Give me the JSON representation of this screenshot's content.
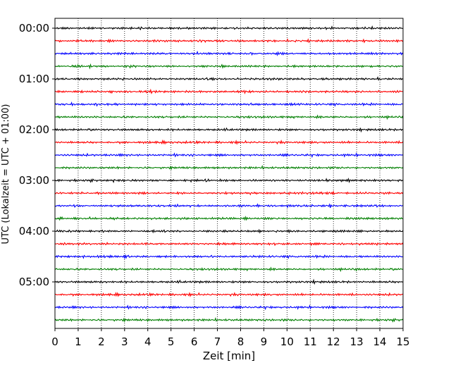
{
  "chart_data": {
    "type": "line",
    "title": "",
    "xlabel": "Zeit  [min]",
    "ylabel": "UTC (Lokalzeit = UTC + 01:00)",
    "xlim": [
      0,
      15
    ],
    "x_ticks": [
      "0",
      "1",
      "2",
      "3",
      "4",
      "5",
      "6",
      "7",
      "8",
      "9",
      "10",
      "11",
      "12",
      "13",
      "14",
      "15"
    ],
    "y_tick_labels": [
      "00:00",
      "01:00",
      "02:00",
      "03:00",
      "04:00",
      "05:00"
    ],
    "grid": "vertical dotted",
    "rows_per_hour": 4,
    "row_minutes": 15,
    "color_cycle": [
      "#000000",
      "#ff0000",
      "#0000ff",
      "#007f00"
    ],
    "traces": [
      {
        "label": "00:00",
        "color": "#000000"
      },
      {
        "label": "00:15",
        "color": "#ff0000"
      },
      {
        "label": "00:30",
        "color": "#0000ff"
      },
      {
        "label": "00:45",
        "color": "#007f00"
      },
      {
        "label": "01:00",
        "color": "#000000"
      },
      {
        "label": "01:15",
        "color": "#ff0000"
      },
      {
        "label": "01:30",
        "color": "#0000ff"
      },
      {
        "label": "01:45",
        "color": "#007f00"
      },
      {
        "label": "02:00",
        "color": "#000000"
      },
      {
        "label": "02:15",
        "color": "#ff0000"
      },
      {
        "label": "02:30",
        "color": "#0000ff"
      },
      {
        "label": "02:45",
        "color": "#007f00"
      },
      {
        "label": "03:00",
        "color": "#000000"
      },
      {
        "label": "03:15",
        "color": "#ff0000"
      },
      {
        "label": "03:30",
        "color": "#0000ff"
      },
      {
        "label": "03:45",
        "color": "#007f00"
      },
      {
        "label": "04:00",
        "color": "#000000"
      },
      {
        "label": "04:15",
        "color": "#ff0000"
      },
      {
        "label": "04:30",
        "color": "#0000ff"
      },
      {
        "label": "04:45",
        "color": "#007f00"
      },
      {
        "label": "05:00",
        "color": "#000000"
      },
      {
        "label": "05:15",
        "color": "#ff0000"
      },
      {
        "label": "05:30",
        "color": "#0000ff"
      },
      {
        "label": "05:45",
        "color": "#007f00"
      }
    ]
  }
}
